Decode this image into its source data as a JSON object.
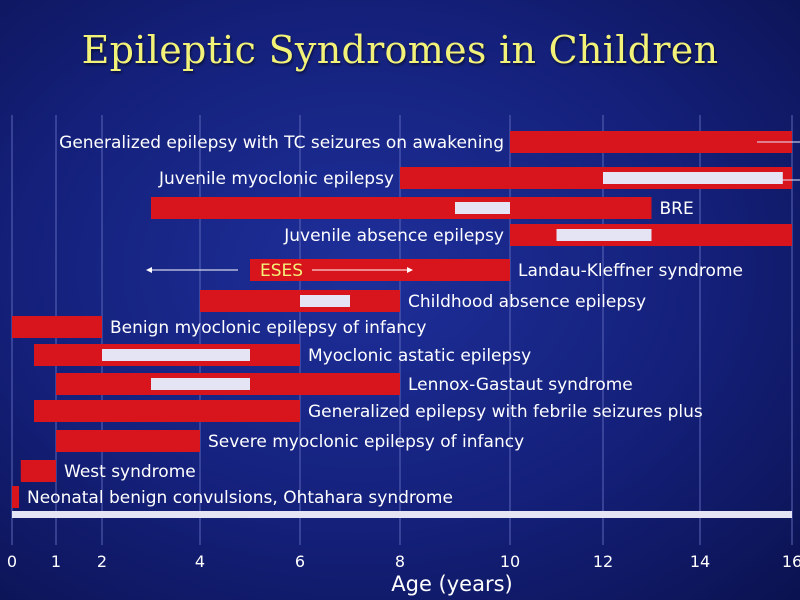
{
  "title": "Epileptic Syndromes in Children",
  "chart_data": {
    "type": "range-bar",
    "xlabel": "Age (years)",
    "xlim": [
      0,
      16
    ],
    "ticks": [
      0,
      1,
      2,
      4,
      6,
      8,
      10,
      12,
      14,
      16
    ],
    "grid": true,
    "colors": {
      "range": "#d8141c",
      "peak": "#e4e4f4",
      "axis_bar": "#e4e4f4",
      "grid": "#5b66b8"
    },
    "rows": [
      {
        "label": "Generalized epilepsy with TC seizures on awakening",
        "start": 10,
        "end": 16,
        "peak": null,
        "label_pos": "left"
      },
      {
        "label": "Juvenile myoclonic epilepsy",
        "start": 8,
        "end": 16,
        "peak": [
          12,
          15.8
        ],
        "label_pos": "left"
      },
      {
        "label": "BRE",
        "start": 3,
        "end": 13,
        "peak": [
          9,
          10
        ],
        "label_pos": "right"
      },
      {
        "label": "Juvenile absence epilepsy",
        "start": 10,
        "end": 16,
        "peak": [
          11,
          13
        ],
        "label_pos": "left"
      },
      {
        "label": "Landau-Kleffner syndrome",
        "start": 5,
        "end": 10,
        "peak": null,
        "label_pos": "right",
        "inner_label": "ESES"
      },
      {
        "label": "Childhood absence epilepsy",
        "start": 4,
        "end": 8,
        "peak": [
          6,
          7
        ],
        "label_pos": "right"
      },
      {
        "label": "Benign myoclonic epilepsy of infancy",
        "start": 0,
        "end": 2,
        "peak": null,
        "label_pos": "right"
      },
      {
        "label": "Myoclonic astatic epilepsy",
        "start": 0.5,
        "end": 6,
        "peak": [
          2,
          5
        ],
        "label_pos": "right"
      },
      {
        "label": "Lennox-Gastaut syndrome",
        "start": 1,
        "end": 8,
        "peak": [
          3,
          5
        ],
        "label_pos": "right"
      },
      {
        "label": "Generalized epilepsy with febrile seizures plus",
        "start": 0.5,
        "end": 6,
        "peak": null,
        "label_pos": "right"
      },
      {
        "label": "Severe myoclonic epilepsy of infancy",
        "start": 1,
        "end": 4,
        "peak": null,
        "label_pos": "right"
      },
      {
        "label": "West syndrome",
        "start": 0.2,
        "end": 1,
        "peak": null,
        "label_pos": "right"
      },
      {
        "label": "Neonatal benign convulsions, Ohtahara syndrome",
        "start": 0,
        "end": 0.1,
        "peak": null,
        "label_pos": "right"
      }
    ]
  }
}
